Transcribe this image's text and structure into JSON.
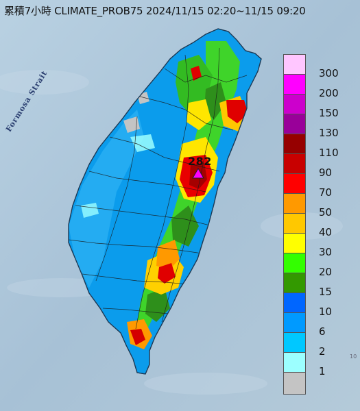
{
  "title": "累積7小時 CLIMATE_PROB75 2024/11/15 02:20~11/15 09:20",
  "strait_label": "Formosa Strait",
  "max_value_label": "282",
  "corner_mark": "10",
  "legend": {
    "bins": [
      {
        "color": "#ffc6ff"
      },
      {
        "color": "#ff00ff"
      },
      {
        "color": "#cc00cc"
      },
      {
        "color": "#990099"
      },
      {
        "color": "#960000"
      },
      {
        "color": "#c80000"
      },
      {
        "color": "#ff0000"
      },
      {
        "color": "#ff9900"
      },
      {
        "color": "#ffc800"
      },
      {
        "color": "#ffff00"
      },
      {
        "color": "#33ff00"
      },
      {
        "color": "#339900"
      },
      {
        "color": "#0066ff"
      },
      {
        "color": "#009aff"
      },
      {
        "color": "#00c8ff"
      },
      {
        "color": "#9cffff"
      },
      {
        "color": "#c4c4c4"
      }
    ],
    "labels": [
      "300",
      "200",
      "150",
      "130",
      "110",
      "90",
      "70",
      "50",
      "40",
      "30",
      "20",
      "15",
      "10",
      "6",
      "2",
      "1"
    ]
  },
  "colors": {
    "sea": "#aec7d9",
    "island_base": "#0b9cec",
    "county_lines": "#1a1a1a"
  }
}
